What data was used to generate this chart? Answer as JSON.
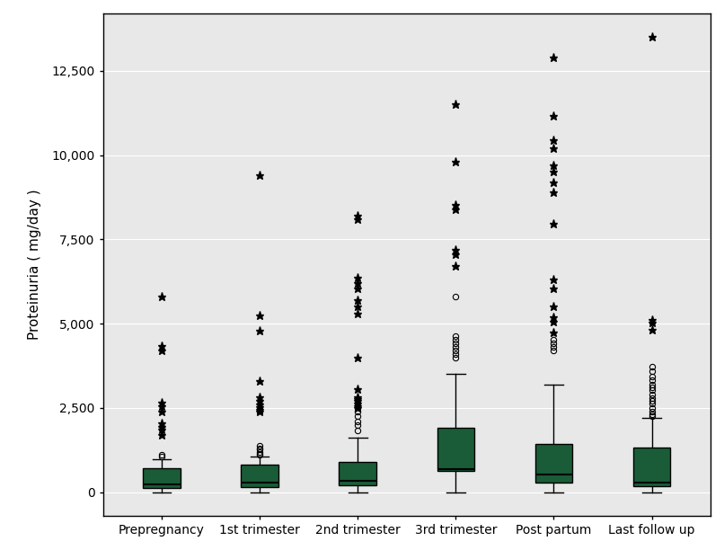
{
  "categories": [
    "Prepregnancy",
    "1st trimester",
    "2nd trimester",
    "3rd trimester",
    "Post partum",
    "Last follow up"
  ],
  "box_color": "#1a5c38",
  "median_color": "#000000",
  "background_color": "#ffffff",
  "plot_bg_color": "#e8e8e8",
  "ylabel": "Proteinuria ( mg/day )",
  "ylim": [
    -700,
    14200
  ],
  "yticks": [
    0,
    2500,
    5000,
    7500,
    10000,
    12500
  ],
  "box_width": 0.38,
  "box_data": [
    {
      "name": "Prepregnancy",
      "q1": 130,
      "median": 220,
      "q3": 720,
      "whisker_low": 0,
      "whisker_high": 980,
      "outliers_circle": [
        1050,
        1100
      ],
      "outliers_star": [
        1700,
        1850,
        1950,
        2050,
        2400,
        2550,
        2650,
        4200,
        4350,
        5800
      ]
    },
    {
      "name": "1st trimester",
      "q1": 150,
      "median": 290,
      "q3": 820,
      "whisker_low": 0,
      "whisker_high": 1050,
      "outliers_circle": [
        1100,
        1150,
        1200,
        1260,
        1310,
        1370
      ],
      "outliers_star": [
        2380,
        2450,
        2520,
        2610,
        2700,
        2820,
        3300,
        4800,
        5250,
        9400
      ]
    },
    {
      "name": "2nd trimester",
      "q1": 200,
      "median": 340,
      "q3": 900,
      "whisker_low": 0,
      "whisker_high": 1620,
      "outliers_circle": [
        1820,
        2000,
        2100,
        2250,
        2400
      ],
      "outliers_star": [
        2500,
        2560,
        2620,
        2700,
        2760,
        2820,
        3050,
        4000,
        5300,
        5500,
        5700,
        6050,
        6200,
        6350,
        8100,
        8200
      ]
    },
    {
      "name": "3rd trimester",
      "q1": 620,
      "median": 680,
      "q3": 1900,
      "whisker_low": 0,
      "whisker_high": 3500,
      "outliers_circle": [
        4000,
        4100,
        4200,
        4300,
        4420,
        4520,
        4620,
        5800
      ],
      "outliers_star": [
        6700,
        7050,
        7200,
        8400,
        8520,
        9800,
        11500
      ]
    },
    {
      "name": "Post partum",
      "q1": 280,
      "median": 520,
      "q3": 1420,
      "whisker_low": 0,
      "whisker_high": 3200,
      "outliers_circle": [
        4200,
        4300,
        4420,
        4520
      ],
      "outliers_star": [
        4750,
        5050,
        5200,
        5500,
        6050,
        6300,
        7950,
        8900,
        9200,
        9500,
        9700,
        10200,
        10450,
        11150,
        12900
      ]
    },
    {
      "name": "Last follow up",
      "q1": 180,
      "median": 290,
      "q3": 1320,
      "whisker_low": 0,
      "whisker_high": 2200,
      "outliers_circle": [
        2260,
        2320,
        2380,
        2500,
        2620,
        2700,
        2800,
        2900,
        3020,
        3100,
        3200,
        3320,
        3420,
        3600,
        3720
      ],
      "outliers_star": [
        4820,
        5020,
        5120,
        13500
      ]
    }
  ]
}
